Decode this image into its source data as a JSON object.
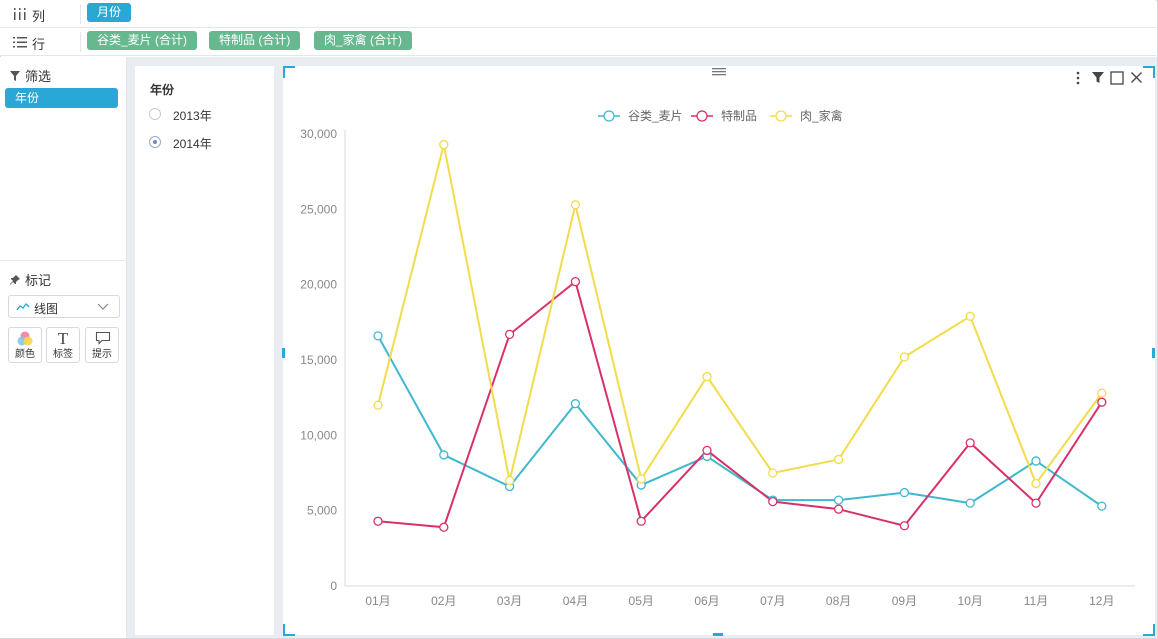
{
  "shelves": {
    "columns": {
      "label": "列",
      "pills": [
        "月份"
      ]
    },
    "rows": {
      "label": "行",
      "pills": [
        "谷类_麦片 (合计)",
        "特制品 (合计)",
        "肉_家禽 (合计)"
      ]
    }
  },
  "left_panel": {
    "filter_header": "筛选",
    "filter_tag": "年份",
    "marks_header": "标记",
    "mark_type": "线图",
    "mark_buttons": [
      {
        "label": "颜色",
        "icon": "color-icon"
      },
      {
        "label": "标签",
        "icon": "text-icon"
      },
      {
        "label": "提示",
        "icon": "tooltip-icon"
      }
    ]
  },
  "year_filter": {
    "title": "年份",
    "options": [
      {
        "label": "2013年",
        "checked": false
      },
      {
        "label": "2014年",
        "checked": true
      }
    ]
  },
  "toolbar_icons": [
    "more-icon",
    "filter-icon",
    "maximize-icon",
    "close-icon"
  ],
  "chart_data": {
    "type": "line",
    "categories": [
      "01月",
      "02月",
      "03月",
      "04月",
      "05月",
      "06月",
      "07月",
      "08月",
      "09月",
      "10月",
      "11月",
      "12月"
    ],
    "ylim": [
      0,
      30000
    ],
    "yticks": [
      0,
      5000,
      10000,
      15000,
      20000,
      25000,
      30000
    ],
    "ytick_labels": [
      "0",
      "5,000",
      "10,000",
      "15,000",
      "20,000",
      "25,000",
      "30,000"
    ],
    "legend_position": "top-center",
    "grid": false,
    "series": [
      {
        "name": "谷类_麦片",
        "color": "#3fb8cf",
        "values": [
          16600,
          8700,
          6600,
          12100,
          6700,
          8600,
          5700,
          5700,
          6200,
          5500,
          8300,
          5300
        ]
      },
      {
        "name": "特制品",
        "color": "#d9306a",
        "values": [
          4300,
          3900,
          16700,
          20200,
          4300,
          9000,
          5600,
          5100,
          4000,
          9500,
          5500,
          12200
        ]
      },
      {
        "name": "肉_家禽",
        "color": "#f2dc4c",
        "values": [
          12000,
          29300,
          7000,
          25300,
          7100,
          13900,
          7500,
          8400,
          15200,
          17900,
          6800,
          12800
        ]
      }
    ]
  }
}
